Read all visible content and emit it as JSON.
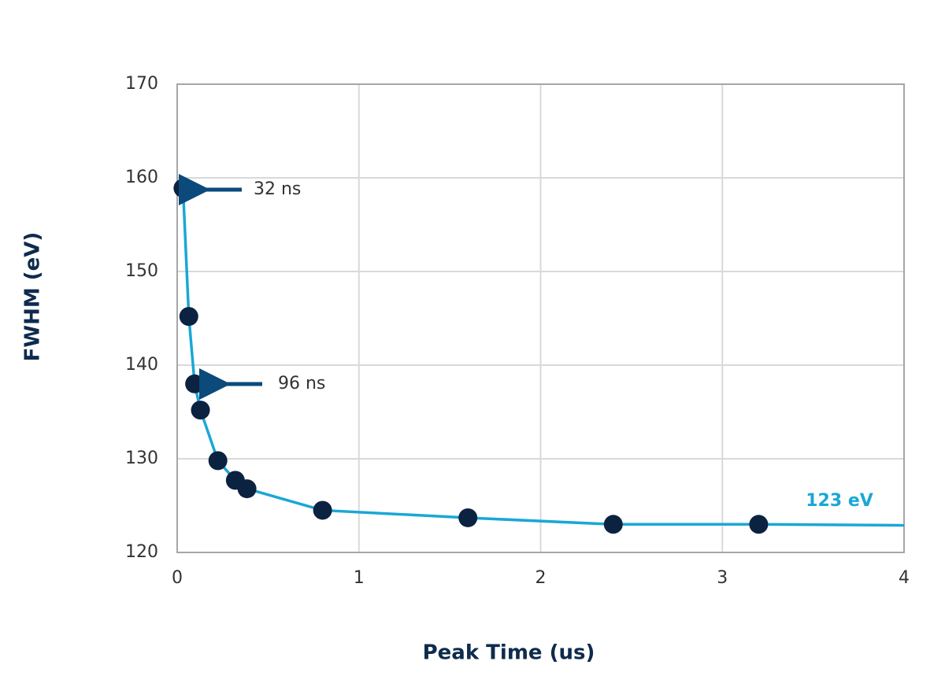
{
  "chart_data": {
    "type": "line",
    "x_label": "Peak Time (us)",
    "y_label": "FWHM (eV)",
    "xlim": [
      0,
      4
    ],
    "xticks": [
      0,
      1,
      2,
      3,
      4
    ],
    "ylim": [
      120,
      170
    ],
    "yticks": [
      120,
      130,
      140,
      150,
      160,
      170
    ],
    "grid": true,
    "series": [
      {
        "color": "#1aa7d6",
        "marker_color": "#0b2240",
        "markers": true,
        "x": [
          0.032,
          0.064,
          0.096,
          0.128,
          0.224,
          0.32,
          0.384,
          0.8,
          1.6,
          2.4,
          3.2
        ],
        "values": [
          158.9,
          145.2,
          138.0,
          135.2,
          129.8,
          127.7,
          126.8,
          124.5,
          123.7,
          123.0,
          123.0
        ]
      },
      {
        "color": "#1aa7d6",
        "markers": false,
        "x": [
          3.2,
          4
        ],
        "values": [
          123.0,
          122.9
        ]
      }
    ],
    "annotations": [
      "32 ns",
      "96 ns",
      "123 eV"
    ]
  }
}
